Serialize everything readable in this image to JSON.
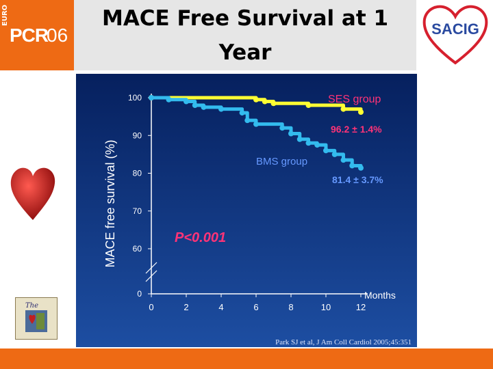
{
  "header": {
    "title_line1": "MACE Free Survival at 1",
    "title_line2": "Year",
    "logo_left": {
      "prefix": "EURO",
      "word": "PCR",
      "year": "06"
    },
    "logo_right": {
      "text": "SACIG"
    },
    "band_color": "#e6e6e6",
    "accent_color": "#ee6a14"
  },
  "chart_data": {
    "type": "line",
    "ylabel": "MACE free survival (%)",
    "xlabel": "Months",
    "x_ticks": [
      0,
      2,
      4,
      6,
      8,
      10,
      12
    ],
    "y_ticks": [
      0,
      60,
      70,
      80,
      90,
      100
    ],
    "y_axis_break": true,
    "ylim": [
      0,
      100
    ],
    "xlim": [
      0,
      12
    ],
    "grid": false,
    "series": [
      {
        "name": "SES group",
        "color": "#ffff33",
        "label_color": "#ff3377",
        "final_label": "96.2 ± 1.4%",
        "x": [
          0,
          1,
          2,
          3,
          4,
          5,
          5.8,
          6,
          6.5,
          7,
          8,
          9,
          10,
          11,
          12
        ],
        "y": [
          100,
          100,
          100,
          100,
          100,
          100,
          100,
          99.5,
          99,
          98.5,
          98.5,
          98,
          98,
          97,
          96.2
        ]
      },
      {
        "name": "BMS group",
        "color": "#33bbee",
        "label_color": "#6699ff",
        "final_label": "81.4 ± 3.7%",
        "x": [
          0,
          1,
          2,
          2.5,
          3,
          4,
          5,
          5.2,
          5.5,
          6,
          7,
          7.5,
          8,
          8.5,
          9,
          9.5,
          10,
          10.5,
          11,
          11.5,
          12
        ],
        "y": [
          100,
          99.5,
          99,
          98,
          97.5,
          97,
          97,
          96,
          94,
          93,
          93,
          92,
          90.5,
          89,
          88,
          87.5,
          86,
          85,
          83.5,
          82,
          81.4
        ]
      }
    ],
    "annotation": "P<0.001"
  },
  "citation": "Park SJ et al, J Am Coll Cardiol 2005;45:351",
  "book_label": "The"
}
